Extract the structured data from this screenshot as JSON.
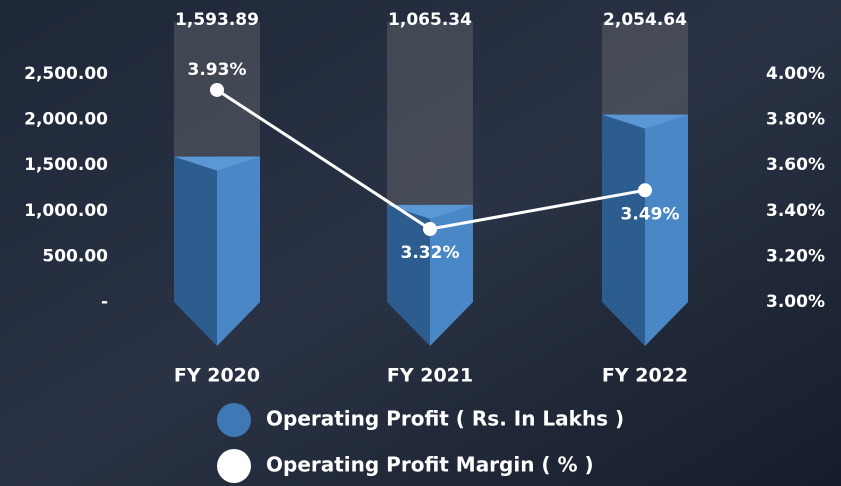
{
  "chart_data": {
    "type": "bar-line",
    "categories": [
      "FY 2020",
      "FY 2021",
      "FY 2022"
    ],
    "series": [
      {
        "name": "Operating Profit ( Rs. In Lakhs )",
        "color": "#3f78b5",
        "values": [
          1593.89,
          1065.34,
          2054.64
        ],
        "value_labels": [
          "1,593.89",
          "1,065.34",
          "2,054.64"
        ]
      },
      {
        "name": "Operating Profit Margin ( % )",
        "color": "#ffffff",
        "axis": "y2",
        "values": [
          3.93,
          3.32,
          3.49
        ],
        "value_labels": [
          "3.93%",
          "3.32%",
          "3.49%"
        ]
      }
    ],
    "ylim": [
      0,
      2500
    ],
    "yticks": [
      {
        "value": 0,
        "label": "-"
      },
      {
        "value": 500,
        "label": "500.00"
      },
      {
        "value": 1000,
        "label": "1,000.00"
      },
      {
        "value": 1500,
        "label": "1,500.00"
      },
      {
        "value": 2000,
        "label": "2,000.00"
      },
      {
        "value": 2500,
        "label": "2,500.00"
      }
    ],
    "y2lim": [
      3,
      4
    ],
    "y2ticks": [
      {
        "value": 3,
        "label": "3.00%"
      },
      {
        "value": 3.2,
        "label": "3.20%"
      },
      {
        "value": 3.4,
        "label": "3.40%"
      },
      {
        "value": 3.6,
        "label": "3.60%"
      },
      {
        "value": 3.8,
        "label": "3.80%"
      },
      {
        "value": 4,
        "label": "4.00%"
      }
    ]
  }
}
